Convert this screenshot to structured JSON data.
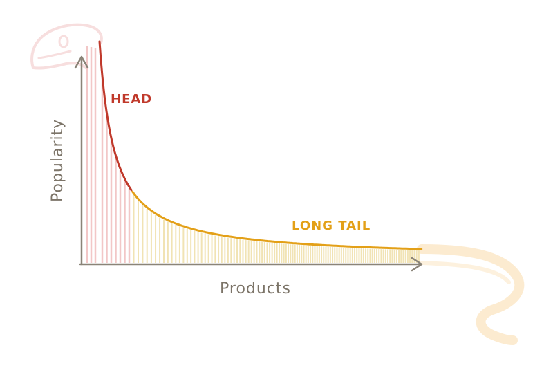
{
  "colors": {
    "background": "#ffffff",
    "axis": "#8a8478",
    "head": "#c0392b",
    "head_bars": "#f2c7c7",
    "tail": "#e3a018",
    "tail_bars": "#f1e3b4",
    "creature": "#f7dede",
    "creature_tail": "#fbe7c8"
  },
  "chart_data": {
    "type": "area",
    "title": "",
    "xlabel": "Products",
    "ylabel": "Popularity",
    "annotations": [
      {
        "text": "HEAD",
        "region": "head",
        "color": "#c0392b"
      },
      {
        "text": "LONG TAIL",
        "region": "tail",
        "color": "#e3a018"
      }
    ],
    "x_ticks": [],
    "y_ticks": [],
    "grid": false,
    "legend": "none",
    "curve_shape": "power-law decay",
    "segments": [
      {
        "name": "HEAD",
        "share_of_products": 0.17
      },
      {
        "name": "LONG TAIL",
        "share_of_products": 0.83
      }
    ]
  }
}
